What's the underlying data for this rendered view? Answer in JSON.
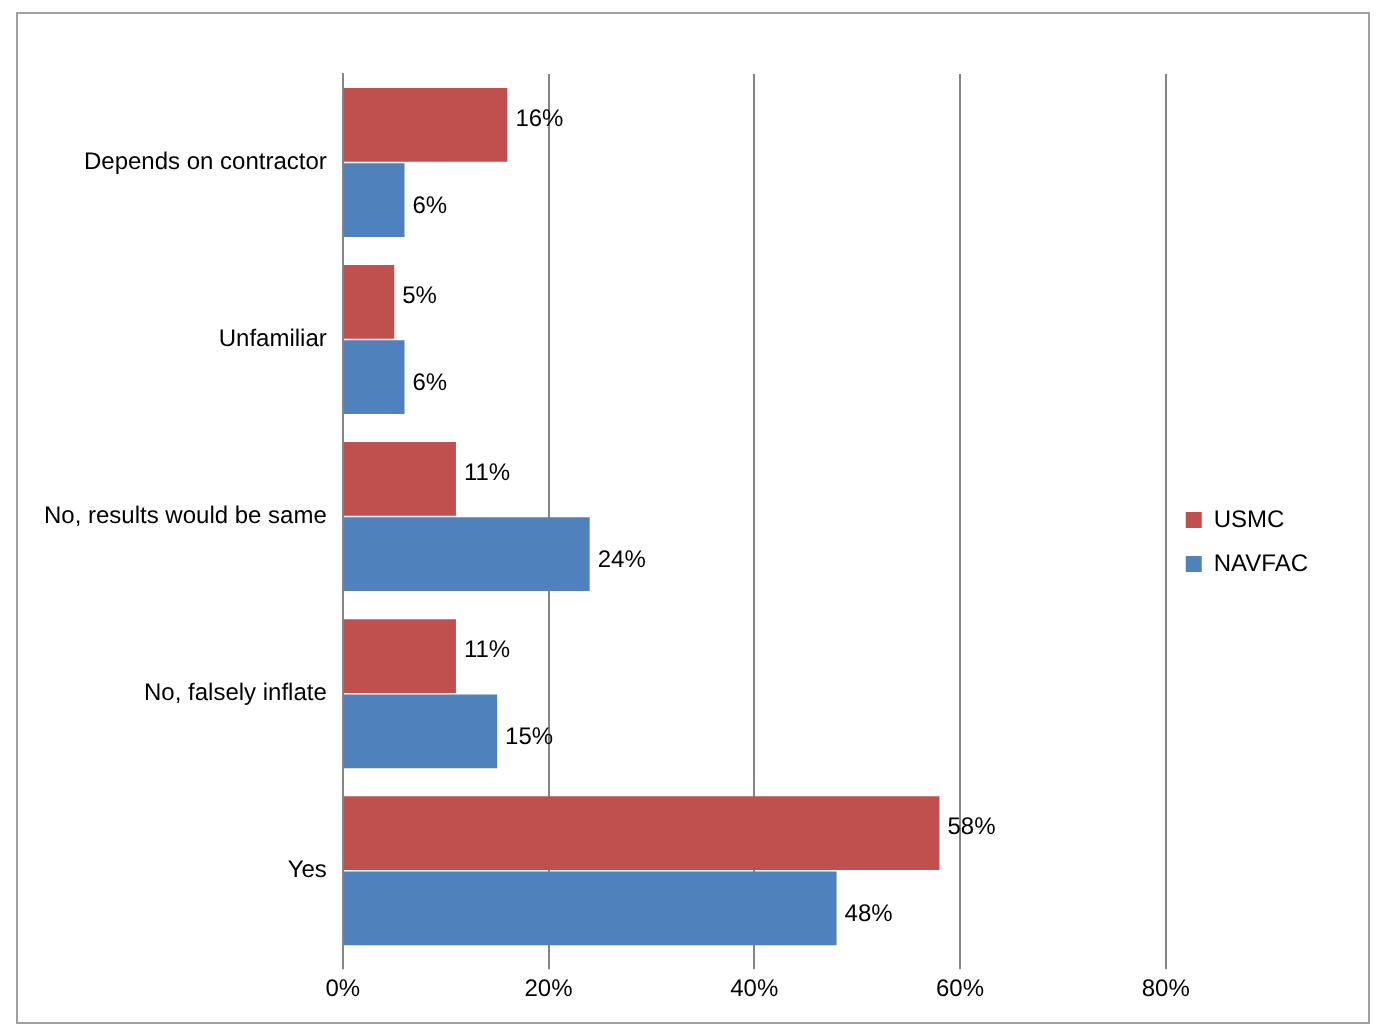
{
  "chart_data": {
    "type": "bar",
    "orientation": "horizontal",
    "categories": [
      "Depends on contractor",
      "Unfamiliar",
      "No, results would be same",
      "No, falsely inflate",
      "Yes"
    ],
    "series": [
      {
        "name": "USMC",
        "color": "#c0504d",
        "values": [
          16,
          5,
          11,
          11,
          58
        ],
        "value_labels": [
          "16%",
          "5%",
          "11%",
          "11%",
          "58%"
        ]
      },
      {
        "name": "NAVFAC",
        "color": "#4f81bd",
        "values": [
          6,
          6,
          24,
          15,
          48
        ],
        "value_labels": [
          "6%",
          "6%",
          "24%",
          "15%",
          "48%"
        ]
      }
    ],
    "xlim": [
      0,
      80
    ],
    "xticks": [
      {
        "value": 0,
        "label": "0%"
      },
      {
        "value": 20,
        "label": "20%"
      },
      {
        "value": 40,
        "label": "40%"
      },
      {
        "value": 60,
        "label": "60%"
      },
      {
        "value": 80,
        "label": "80%"
      }
    ],
    "grid": "x",
    "legend": "right"
  }
}
